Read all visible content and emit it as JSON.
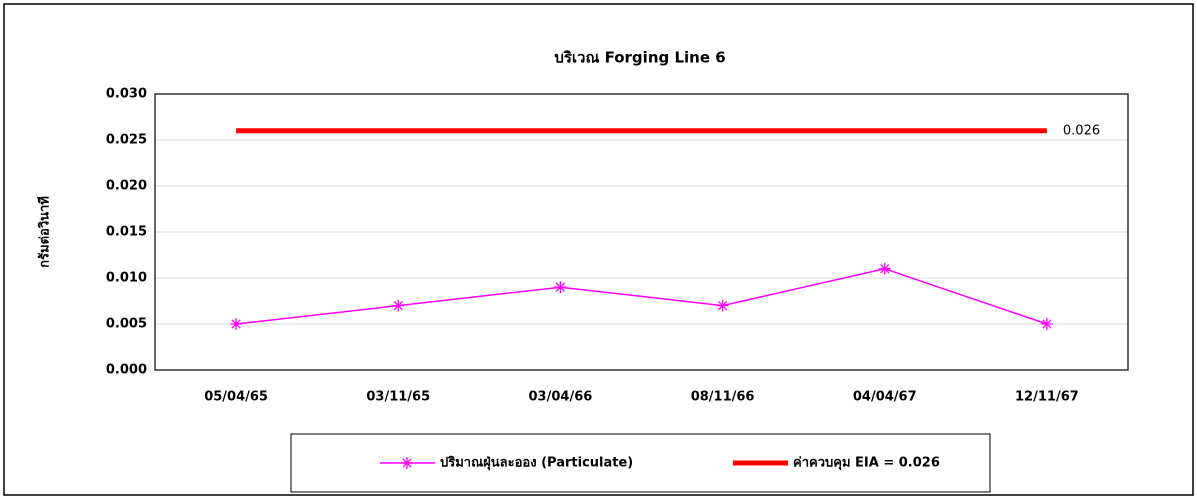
{
  "chart_data": {
    "type": "line",
    "title": "บริเวณ Forging Line 6",
    "y_label": "กรัมต่อวินาที",
    "categories": [
      "05/04/65",
      "03/11/65",
      "03/04/66",
      "08/11/66",
      "04/04/67",
      "12/11/67"
    ],
    "series": [
      {
        "name": "ปริมาณฝุ่นละออง (Particulate)",
        "color": "#ff00ff",
        "marker": "asterisk",
        "values": [
          0.005,
          0.007,
          0.009,
          0.007,
          0.011,
          0.005
        ]
      },
      {
        "name": "ค่าควบคุม EIA = 0.026",
        "color": "#ff0000",
        "values": [
          0.026,
          0.026,
          0.026,
          0.026,
          0.026,
          0.026
        ]
      }
    ],
    "ylim": [
      0,
      0.03
    ],
    "yticks": [
      {
        "value": 0,
        "label": "0.000"
      },
      {
        "value": 0.005,
        "label": "0.005"
      },
      {
        "value": 0.01,
        "label": "0.010"
      },
      {
        "value": 0.015,
        "label": "0.015"
      },
      {
        "value": 0.02,
        "label": "0.020"
      },
      {
        "value": 0.025,
        "label": "0.025"
      },
      {
        "value": 0.03,
        "label": "0.030"
      }
    ],
    "grid": true,
    "legend": "bottom"
  }
}
